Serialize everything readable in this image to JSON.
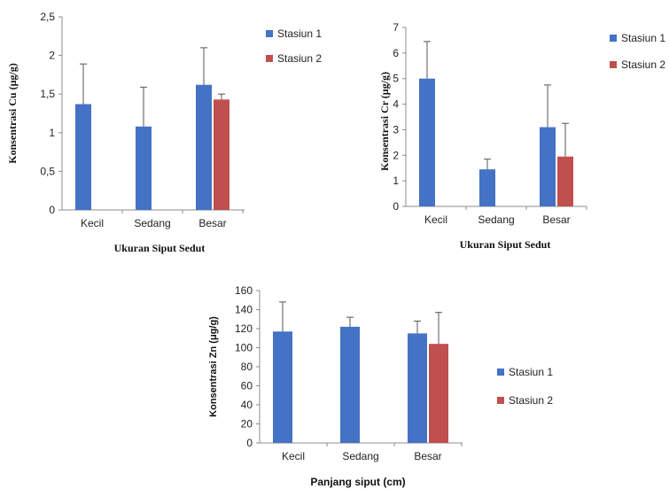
{
  "chart_data": [
    {
      "type": "bar",
      "categories": [
        "Kecil",
        "Sedang",
        "Besar"
      ],
      "series": [
        {
          "name": "Stasiun 1",
          "values": [
            1.37,
            1.08,
            1.62
          ],
          "errors": [
            0.52,
            0.51,
            0.48
          ],
          "color": "#4472C4"
        },
        {
          "name": "Stasiun 2",
          "values": [
            null,
            null,
            1.43
          ],
          "errors": [
            null,
            null,
            0.07
          ],
          "color": "#C0504D"
        }
      ],
      "xlabel": "Ukuran Siput Sedut",
      "ylabel": "Konsentrasi Cu (μg/g)",
      "ylim": [
        0,
        2.5
      ],
      "yticks": [
        "0",
        "0,5",
        "1",
        "1,5",
        "2",
        "2,5"
      ],
      "legend": "right"
    },
    {
      "type": "bar",
      "categories": [
        "Kecil",
        "Sedang",
        "Besar"
      ],
      "series": [
        {
          "name": "Stasiun 1",
          "values": [
            5.0,
            1.45,
            3.1
          ],
          "errors": [
            1.45,
            0.4,
            1.65
          ],
          "color": "#4472C4"
        },
        {
          "name": "Stasiun 2",
          "values": [
            null,
            null,
            1.95
          ],
          "errors": [
            null,
            null,
            1.3
          ],
          "color": "#C0504D"
        }
      ],
      "xlabel": "Ukuran Siput Sedut",
      "ylabel": "Konsentrasi Cr (μg/g)",
      "ylim": [
        0,
        7
      ],
      "yticks": [
        "0",
        "1",
        "2",
        "3",
        "4",
        "5",
        "6",
        "7"
      ],
      "legend": "right"
    },
    {
      "type": "bar",
      "categories": [
        "Kecil",
        "Sedang",
        "Besar"
      ],
      "series": [
        {
          "name": "Stasiun 1",
          "values": [
            117,
            122,
            115
          ],
          "errors": [
            31,
            10,
            13
          ],
          "color": "#4472C4"
        },
        {
          "name": "Stasiun 2",
          "values": [
            null,
            null,
            104
          ],
          "errors": [
            null,
            null,
            33
          ],
          "color": "#C0504D"
        }
      ],
      "xlabel": "Panjang siput (cm)",
      "ylabel": "Konsentrasi Zn (μg/g)",
      "ylim": [
        0,
        160
      ],
      "yticks": [
        "0",
        "20",
        "40",
        "60",
        "80",
        "100",
        "120",
        "140",
        "160"
      ],
      "legend": "right"
    }
  ]
}
